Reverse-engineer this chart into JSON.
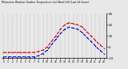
{
  "title": "Milwaukee Weather Outdoor Temperature (vs) Wind Chill (Last 24 Hours)",
  "background_color": "#e8e8e8",
  "plot_bg_color": "#e8e8e8",
  "grid_color": "#888888",
  "x_labels": [
    "0",
    "1",
    "2",
    "3",
    "4",
    "5",
    "6",
    "7",
    "8",
    "9",
    "10",
    "11",
    "12",
    "13",
    "14",
    "15",
    "16",
    "17",
    "18",
    "19",
    "20",
    "21",
    "22",
    "23"
  ],
  "temp_color": "#cc0000",
  "windchill_color": "#0000cc",
  "ylim": [
    -10,
    30
  ],
  "yticks": [
    -10,
    0,
    10,
    20,
    30
  ],
  "ytick_labels": [
    "-10",
    "0",
    "10",
    "20",
    "30"
  ],
  "temp_values": [
    -5,
    -5,
    -5,
    -5,
    -5,
    -5,
    -5,
    -5,
    -4,
    -3,
    0,
    5,
    10,
    16,
    20,
    22,
    21,
    20,
    18,
    14,
    10,
    6,
    2,
    -1
  ],
  "windchill_values": [
    -9,
    -9,
    -9,
    -9,
    -9,
    -9,
    -9,
    -9,
    -8,
    -6,
    -3,
    2,
    7,
    12,
    16,
    18,
    17,
    16,
    13,
    9,
    5,
    1,
    -3,
    -6
  ]
}
